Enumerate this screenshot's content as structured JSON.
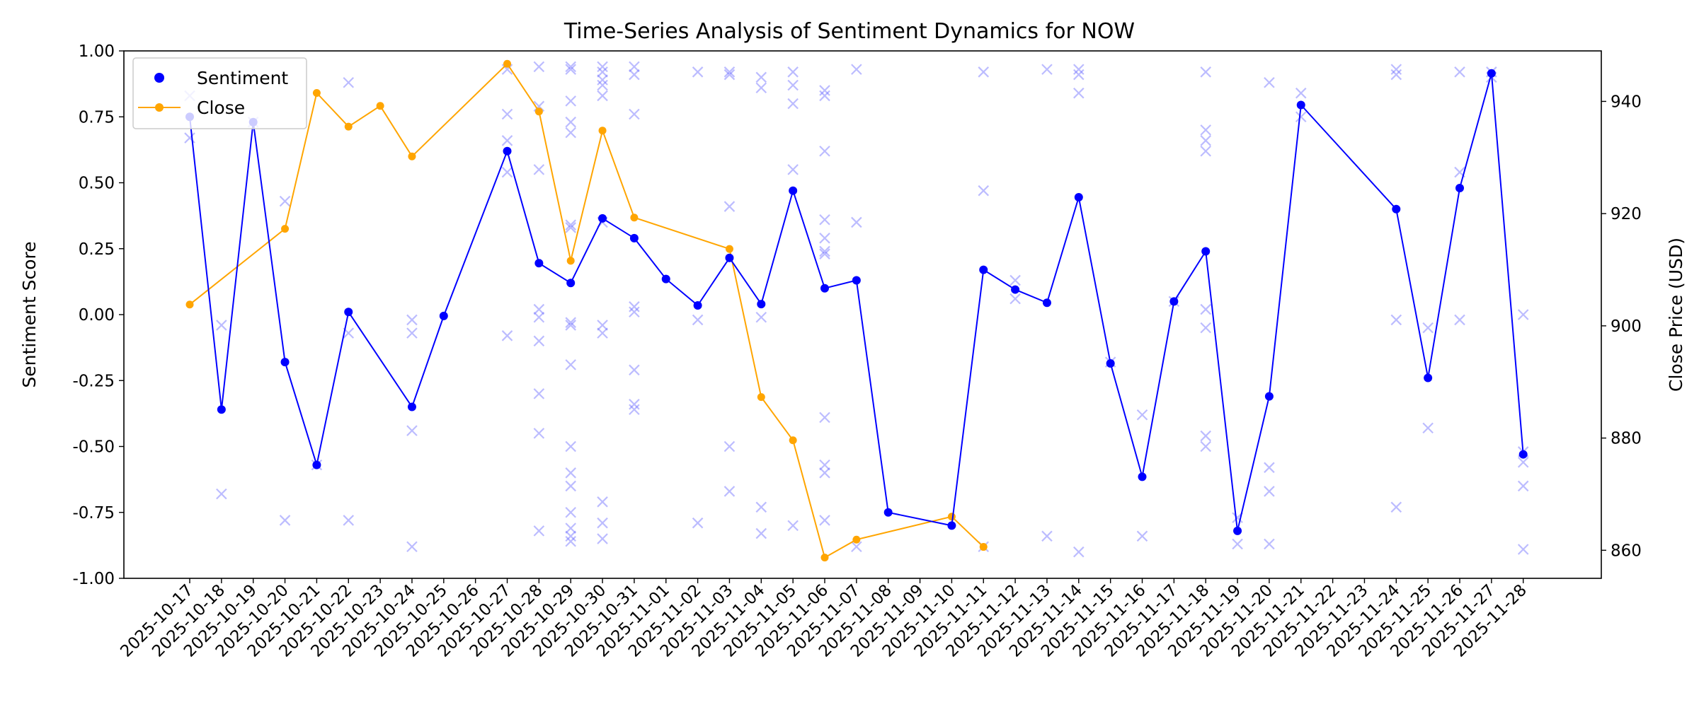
{
  "colors": {
    "sentiment": "#0000ff",
    "close": "#ffa500",
    "raw_marker": "#6b6bff"
  },
  "chart_data": {
    "type": "line",
    "title": "Time-Series Analysis of Sentiment Dynamics for NOW",
    "xlabel": "",
    "ylabel": "Sentiment Score",
    "y2label": "Close Price (USD)",
    "ylim": [
      -1.0,
      1.0
    ],
    "y2lim": [
      855,
      949
    ],
    "yticks": [
      "-1.00",
      "-0.75",
      "-0.50",
      "-0.25",
      "0.00",
      "0.25",
      "0.50",
      "0.75",
      "1.00"
    ],
    "y2ticks": [
      "860",
      "880",
      "900",
      "920",
      "940"
    ],
    "dates": [
      "2025-10-17",
      "2025-10-18",
      "2025-10-19",
      "2025-10-20",
      "2025-10-21",
      "2025-10-22",
      "2025-10-23",
      "2025-10-24",
      "2025-10-25",
      "2025-10-26",
      "2025-10-27",
      "2025-10-28",
      "2025-10-29",
      "2025-10-30",
      "2025-10-31",
      "2025-11-01",
      "2025-11-02",
      "2025-11-03",
      "2025-11-04",
      "2025-11-05",
      "2025-11-06",
      "2025-11-07",
      "2025-11-08",
      "2025-11-09",
      "2025-11-10",
      "2025-11-11",
      "2025-11-12",
      "2025-11-13",
      "2025-11-14",
      "2025-11-15",
      "2025-11-16",
      "2025-11-17",
      "2025-11-18",
      "2025-11-19",
      "2025-11-20",
      "2025-11-21",
      "2025-11-22",
      "2025-11-23",
      "2025-11-24",
      "2025-11-25",
      "2025-11-26",
      "2025-11-27",
      "2025-11-28"
    ],
    "legend_placement": "upper-left",
    "series": [
      {
        "name": "Sentiment",
        "axis": "left",
        "points": [
          [
            "2025-10-17",
            0.75
          ],
          [
            "2025-10-18",
            -0.36
          ],
          [
            "2025-10-19",
            0.73
          ],
          [
            "2025-10-20",
            -0.18
          ],
          [
            "2025-10-21",
            -0.57
          ],
          [
            "2025-10-22",
            0.01
          ],
          [
            "2025-10-24",
            -0.35
          ],
          [
            "2025-10-25",
            -0.005
          ],
          [
            "2025-10-27",
            0.62
          ],
          [
            "2025-10-28",
            0.195
          ],
          [
            "2025-10-29",
            0.12
          ],
          [
            "2025-10-30",
            0.365
          ],
          [
            "2025-10-31",
            0.29
          ],
          [
            "2025-11-01",
            0.135
          ],
          [
            "2025-11-02",
            0.035
          ],
          [
            "2025-11-03",
            0.215
          ],
          [
            "2025-11-04",
            0.04
          ],
          [
            "2025-11-05",
            0.47
          ],
          [
            "2025-11-06",
            0.1
          ],
          [
            "2025-11-07",
            0.13
          ],
          [
            "2025-11-08",
            -0.75
          ],
          [
            "2025-11-10",
            -0.8
          ],
          [
            "2025-11-11",
            0.17
          ],
          [
            "2025-11-12",
            0.095
          ],
          [
            "2025-11-13",
            0.045
          ],
          [
            "2025-11-14",
            0.445
          ],
          [
            "2025-11-15",
            -0.185
          ],
          [
            "2025-11-16",
            -0.615
          ],
          [
            "2025-11-17",
            0.05
          ],
          [
            "2025-11-18",
            0.24
          ],
          [
            "2025-11-19",
            -0.82
          ],
          [
            "2025-11-20",
            -0.31
          ],
          [
            "2025-11-21",
            0.795
          ],
          [
            "2025-11-24",
            0.4
          ],
          [
            "2025-11-25",
            -0.24
          ],
          [
            "2025-11-26",
            0.48
          ],
          [
            "2025-11-27",
            0.915
          ],
          [
            "2025-11-28",
            -0.53
          ]
        ]
      },
      {
        "name": "Close",
        "axis": "right",
        "points": [
          [
            "2025-10-17",
            903.8
          ],
          [
            "2025-10-20",
            917.3
          ],
          [
            "2025-10-21",
            941.5
          ],
          [
            "2025-10-22",
            935.5
          ],
          [
            "2025-10-23",
            939.2
          ],
          [
            "2025-10-24",
            930.2
          ],
          [
            "2025-10-27",
            946.7
          ],
          [
            "2025-10-28",
            938.2
          ],
          [
            "2025-10-29",
            911.6
          ],
          [
            "2025-10-30",
            934.8
          ],
          [
            "2025-10-31",
            919.3
          ],
          [
            "2025-11-03",
            913.7
          ],
          [
            "2025-11-04",
            887.3
          ],
          [
            "2025-11-05",
            879.6
          ],
          [
            "2025-11-06",
            858.7
          ],
          [
            "2025-11-07",
            861.9
          ],
          [
            "2025-11-10",
            866.0
          ],
          [
            "2025-11-11",
            860.6
          ]
        ]
      }
    ],
    "raw_sentiment_scores": [
      [
        "2025-10-17",
        0.83
      ],
      [
        "2025-10-17",
        0.67
      ],
      [
        "2025-10-18",
        -0.04
      ],
      [
        "2025-10-18",
        -0.68
      ],
      [
        "2025-10-19",
        0.73
      ],
      [
        "2025-10-20",
        0.43
      ],
      [
        "2025-10-20",
        -0.78
      ],
      [
        "2025-10-21",
        -0.57
      ],
      [
        "2025-10-22",
        0.88
      ],
      [
        "2025-10-22",
        -0.07
      ],
      [
        "2025-10-22",
        -0.78
      ],
      [
        "2025-10-24",
        -0.02
      ],
      [
        "2025-10-24",
        -0.07
      ],
      [
        "2025-10-24",
        -0.44
      ],
      [
        "2025-10-24",
        -0.88
      ],
      [
        "2025-10-27",
        0.93
      ],
      [
        "2025-10-27",
        0.76
      ],
      [
        "2025-10-27",
        0.66
      ],
      [
        "2025-10-27",
        0.54
      ],
      [
        "2025-10-27",
        -0.08
      ],
      [
        "2025-10-28",
        0.94
      ],
      [
        "2025-10-28",
        0.79
      ],
      [
        "2025-10-28",
        0.55
      ],
      [
        "2025-10-28",
        0.02
      ],
      [
        "2025-10-28",
        -0.01
      ],
      [
        "2025-10-28",
        -0.1
      ],
      [
        "2025-10-28",
        -0.3
      ],
      [
        "2025-10-28",
        -0.45
      ],
      [
        "2025-10-28",
        -0.82
      ],
      [
        "2025-10-29",
        0.94
      ],
      [
        "2025-10-29",
        0.93
      ],
      [
        "2025-10-29",
        0.81
      ],
      [
        "2025-10-29",
        0.73
      ],
      [
        "2025-10-29",
        0.69
      ],
      [
        "2025-10-29",
        0.34
      ],
      [
        "2025-10-29",
        0.33
      ],
      [
        "2025-10-29",
        -0.03
      ],
      [
        "2025-10-29",
        -0.04
      ],
      [
        "2025-10-29",
        -0.19
      ],
      [
        "2025-10-29",
        -0.5
      ],
      [
        "2025-10-29",
        -0.6
      ],
      [
        "2025-10-29",
        -0.65
      ],
      [
        "2025-10-29",
        -0.75
      ],
      [
        "2025-10-29",
        -0.81
      ],
      [
        "2025-10-29",
        -0.84
      ],
      [
        "2025-10-29",
        -0.86
      ],
      [
        "2025-10-30",
        0.94
      ],
      [
        "2025-10-30",
        0.92
      ],
      [
        "2025-10-30",
        0.89
      ],
      [
        "2025-10-30",
        0.87
      ],
      [
        "2025-10-30",
        0.83
      ],
      [
        "2025-10-30",
        0.35
      ],
      [
        "2025-10-30",
        -0.04
      ],
      [
        "2025-10-30",
        -0.07
      ],
      [
        "2025-10-30",
        -0.71
      ],
      [
        "2025-10-30",
        -0.79
      ],
      [
        "2025-10-30",
        -0.85
      ],
      [
        "2025-10-31",
        0.94
      ],
      [
        "2025-10-31",
        0.91
      ],
      [
        "2025-10-31",
        0.76
      ],
      [
        "2025-10-31",
        0.03
      ],
      [
        "2025-10-31",
        0.01
      ],
      [
        "2025-10-31",
        -0.21
      ],
      [
        "2025-10-31",
        -0.34
      ],
      [
        "2025-10-31",
        -0.36
      ],
      [
        "2025-11-02",
        0.92
      ],
      [
        "2025-11-02",
        -0.02
      ],
      [
        "2025-11-02",
        -0.79
      ],
      [
        "2025-11-03",
        0.92
      ],
      [
        "2025-11-03",
        0.91
      ],
      [
        "2025-11-03",
        0.41
      ],
      [
        "2025-11-03",
        -0.5
      ],
      [
        "2025-11-03",
        -0.67
      ],
      [
        "2025-11-04",
        0.9
      ],
      [
        "2025-11-04",
        0.86
      ],
      [
        "2025-11-04",
        -0.01
      ],
      [
        "2025-11-04",
        -0.73
      ],
      [
        "2025-11-04",
        -0.83
      ],
      [
        "2025-11-05",
        0.92
      ],
      [
        "2025-11-05",
        0.87
      ],
      [
        "2025-11-05",
        0.8
      ],
      [
        "2025-11-05",
        0.55
      ],
      [
        "2025-11-05",
        -0.8
      ],
      [
        "2025-11-06",
        0.85
      ],
      [
        "2025-11-06",
        0.83
      ],
      [
        "2025-11-06",
        0.62
      ],
      [
        "2025-11-06",
        0.36
      ],
      [
        "2025-11-06",
        0.29
      ],
      [
        "2025-11-06",
        0.24
      ],
      [
        "2025-11-06",
        0.23
      ],
      [
        "2025-11-06",
        -0.39
      ],
      [
        "2025-11-06",
        -0.57
      ],
      [
        "2025-11-06",
        -0.6
      ],
      [
        "2025-11-06",
        -0.78
      ],
      [
        "2025-11-07",
        0.93
      ],
      [
        "2025-11-07",
        0.35
      ],
      [
        "2025-11-07",
        -0.88
      ],
      [
        "2025-11-11",
        0.92
      ],
      [
        "2025-11-11",
        0.47
      ],
      [
        "2025-11-11",
        -0.88
      ],
      [
        "2025-11-12",
        0.13
      ],
      [
        "2025-11-12",
        0.06
      ],
      [
        "2025-11-13",
        0.93
      ],
      [
        "2025-11-13",
        -0.84
      ],
      [
        "2025-11-14",
        0.93
      ],
      [
        "2025-11-14",
        0.91
      ],
      [
        "2025-11-14",
        0.84
      ],
      [
        "2025-11-14",
        -0.9
      ],
      [
        "2025-11-15",
        -0.18
      ],
      [
        "2025-11-16",
        -0.38
      ],
      [
        "2025-11-16",
        -0.84
      ],
      [
        "2025-11-17",
        0.05
      ],
      [
        "2025-11-18",
        0.92
      ],
      [
        "2025-11-18",
        0.7
      ],
      [
        "2025-11-18",
        0.66
      ],
      [
        "2025-11-18",
        0.62
      ],
      [
        "2025-11-18",
        0.02
      ],
      [
        "2025-11-18",
        -0.05
      ],
      [
        "2025-11-18",
        -0.46
      ],
      [
        "2025-11-18",
        -0.5
      ],
      [
        "2025-11-19",
        -0.77
      ],
      [
        "2025-11-19",
        -0.87
      ],
      [
        "2025-11-20",
        0.88
      ],
      [
        "2025-11-20",
        -0.58
      ],
      [
        "2025-11-20",
        -0.67
      ],
      [
        "2025-11-20",
        -0.87
      ],
      [
        "2025-11-21",
        0.84
      ],
      [
        "2025-11-21",
        0.75
      ],
      [
        "2025-11-24",
        0.93
      ],
      [
        "2025-11-24",
        0.91
      ],
      [
        "2025-11-24",
        -0.02
      ],
      [
        "2025-11-24",
        -0.73
      ],
      [
        "2025-11-25",
        -0.05
      ],
      [
        "2025-11-25",
        -0.43
      ],
      [
        "2025-11-26",
        0.92
      ],
      [
        "2025-11-26",
        0.54
      ],
      [
        "2025-11-26",
        -0.02
      ],
      [
        "2025-11-27",
        0.92
      ],
      [
        "2025-11-27",
        0.9
      ],
      [
        "2025-11-28",
        0.0
      ],
      [
        "2025-11-28",
        -0.52
      ],
      [
        "2025-11-28",
        -0.56
      ],
      [
        "2025-11-28",
        -0.65
      ],
      [
        "2025-11-28",
        -0.89
      ]
    ]
  }
}
